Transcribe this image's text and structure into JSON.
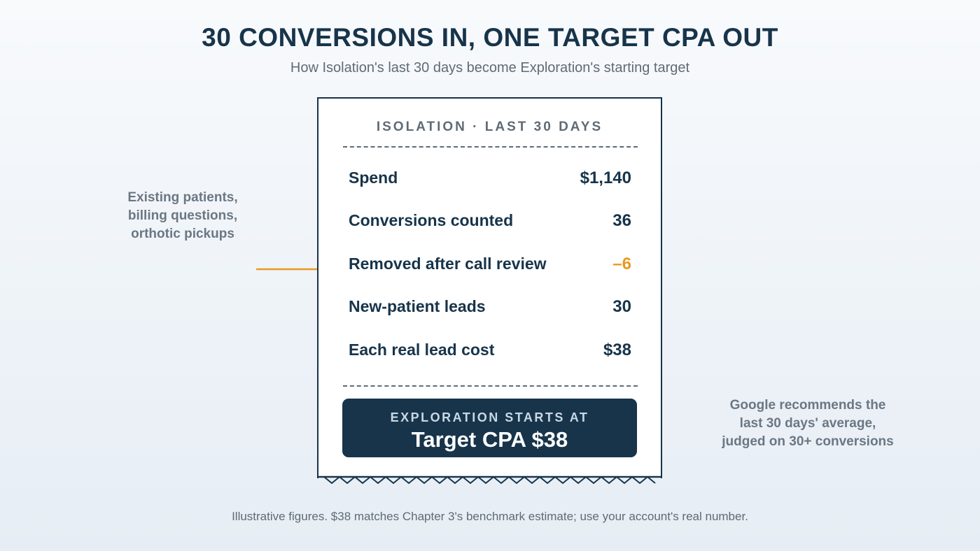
{
  "header": {
    "title": "30 CONVERSIONS IN, ONE TARGET CPA OUT",
    "subtitle": "How Isolation's last 30 days become Exploration's starting target"
  },
  "receipt": {
    "heading": "ISOLATION · LAST 30 DAYS",
    "rows": [
      {
        "label": "Spend",
        "value": "$1,140"
      },
      {
        "label": "Conversions counted",
        "value": "36"
      },
      {
        "label": "Removed after call review",
        "value": "–6"
      },
      {
        "label": "New-patient leads",
        "value": "30"
      },
      {
        "label": "Each real lead cost",
        "value": "$38"
      }
    ],
    "result": {
      "label": "EXPLORATION STARTS AT",
      "value": "Target CPA $38"
    }
  },
  "annotations": {
    "left": [
      "Existing patients,",
      "billing questions,",
      "orthotic pickups"
    ],
    "right": [
      "Google recommends the",
      "last 30 days' average,",
      "judged on 30+ conversions"
    ]
  },
  "footnote": "Illustrative figures. $38 matches Chapter 3's benchmark estimate; use your account's real number.",
  "colors": {
    "navy": "#17344a",
    "accent": "#e89a1e",
    "muted": "#6b7783",
    "paper": "#ffffff"
  },
  "icons": {
    "pointer": "arrow-right-icon"
  }
}
